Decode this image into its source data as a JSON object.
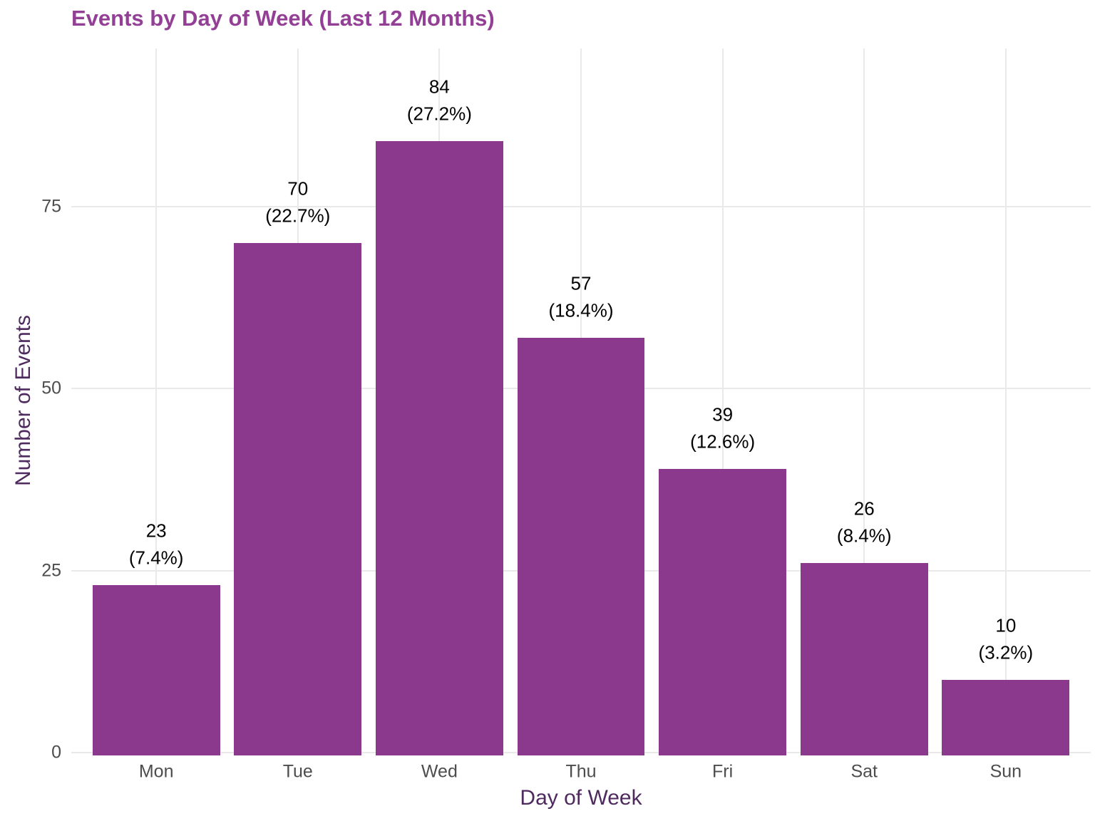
{
  "chart_data": {
    "type": "bar",
    "title": "Events by Day of Week (Last 12 Months)",
    "xlabel": "Day of Week",
    "ylabel": "Number of Events",
    "categories": [
      "Mon",
      "Tue",
      "Wed",
      "Thu",
      "Fri",
      "Sat",
      "Sun"
    ],
    "values": [
      23,
      70,
      84,
      57,
      39,
      26,
      10
    ],
    "percent_labels": [
      "(7.4%)",
      "(22.7%)",
      "(27.2%)",
      "(18.4%)",
      "(12.6%)",
      "(8.4%)",
      "(3.2%)"
    ],
    "y_ticks": [
      0,
      25,
      50,
      75
    ],
    "ylim": [
      0,
      96.7
    ],
    "grid": true,
    "legend": "none"
  },
  "colors": {
    "bar_fill": "#8A398C",
    "title": "#943F96",
    "axis_title": "#4E2A5E",
    "tick_label": "#4D4D4D",
    "value_label": "#000000",
    "gridline": "#E9E9E9",
    "background": "#FFFFFF"
  }
}
